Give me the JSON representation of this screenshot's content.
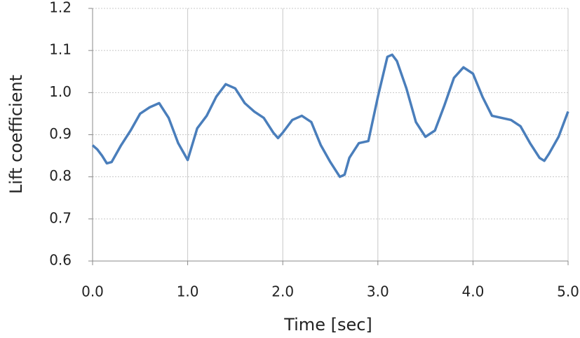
{
  "chart_data": {
    "type": "line",
    "xlabel": "Time [sec]",
    "ylabel": "Lift coefficient",
    "x": [
      0,
      0.05,
      0.1,
      0.15,
      0.2,
      0.3,
      0.4,
      0.5,
      0.6,
      0.7,
      0.8,
      0.9,
      1.0,
      1.1,
      1.2,
      1.3,
      1.4,
      1.5,
      1.6,
      1.7,
      1.8,
      1.9,
      1.95,
      2.0,
      2.1,
      2.2,
      2.3,
      2.4,
      2.5,
      2.6,
      2.65,
      2.7,
      2.8,
      2.9,
      3.0,
      3.1,
      3.15,
      3.2,
      3.3,
      3.4,
      3.5,
      3.6,
      3.7,
      3.8,
      3.9,
      4.0,
      4.1,
      4.2,
      4.3,
      4.4,
      4.5,
      4.6,
      4.7,
      4.75,
      4.8,
      4.9,
      5.0
    ],
    "series": [
      {
        "name": "Lift coefficient",
        "color": "#4a7ebb",
        "values": [
          0.875,
          0.865,
          0.85,
          0.832,
          0.835,
          0.875,
          0.91,
          0.95,
          0.965,
          0.975,
          0.94,
          0.88,
          0.84,
          0.915,
          0.945,
          0.99,
          1.02,
          1.01,
          0.975,
          0.955,
          0.94,
          0.905,
          0.892,
          0.905,
          0.935,
          0.945,
          0.93,
          0.875,
          0.835,
          0.8,
          0.805,
          0.845,
          0.88,
          0.885,
          0.99,
          1.085,
          1.09,
          1.075,
          1.01,
          0.93,
          0.895,
          0.91,
          0.97,
          1.035,
          1.06,
          1.045,
          0.99,
          0.945,
          0.94,
          0.935,
          0.92,
          0.88,
          0.845,
          0.838,
          0.855,
          0.895,
          0.955
        ]
      }
    ],
    "xlim": [
      0,
      5
    ],
    "xticks": [
      {
        "value": 0,
        "label": "0.0"
      },
      {
        "value": 1,
        "label": "1.0"
      },
      {
        "value": 2,
        "label": "2.0"
      },
      {
        "value": 3,
        "label": "3.0"
      },
      {
        "value": 4,
        "label": "4.0"
      },
      {
        "value": 5,
        "label": "5.0"
      }
    ],
    "ylim": [
      0.6,
      1.2
    ],
    "yticks": [
      0.6,
      0.7,
      0.8,
      0.9,
      {
        "value": 1.0,
        "label": "1.0"
      },
      1.1,
      1.2
    ],
    "grid": true
  }
}
